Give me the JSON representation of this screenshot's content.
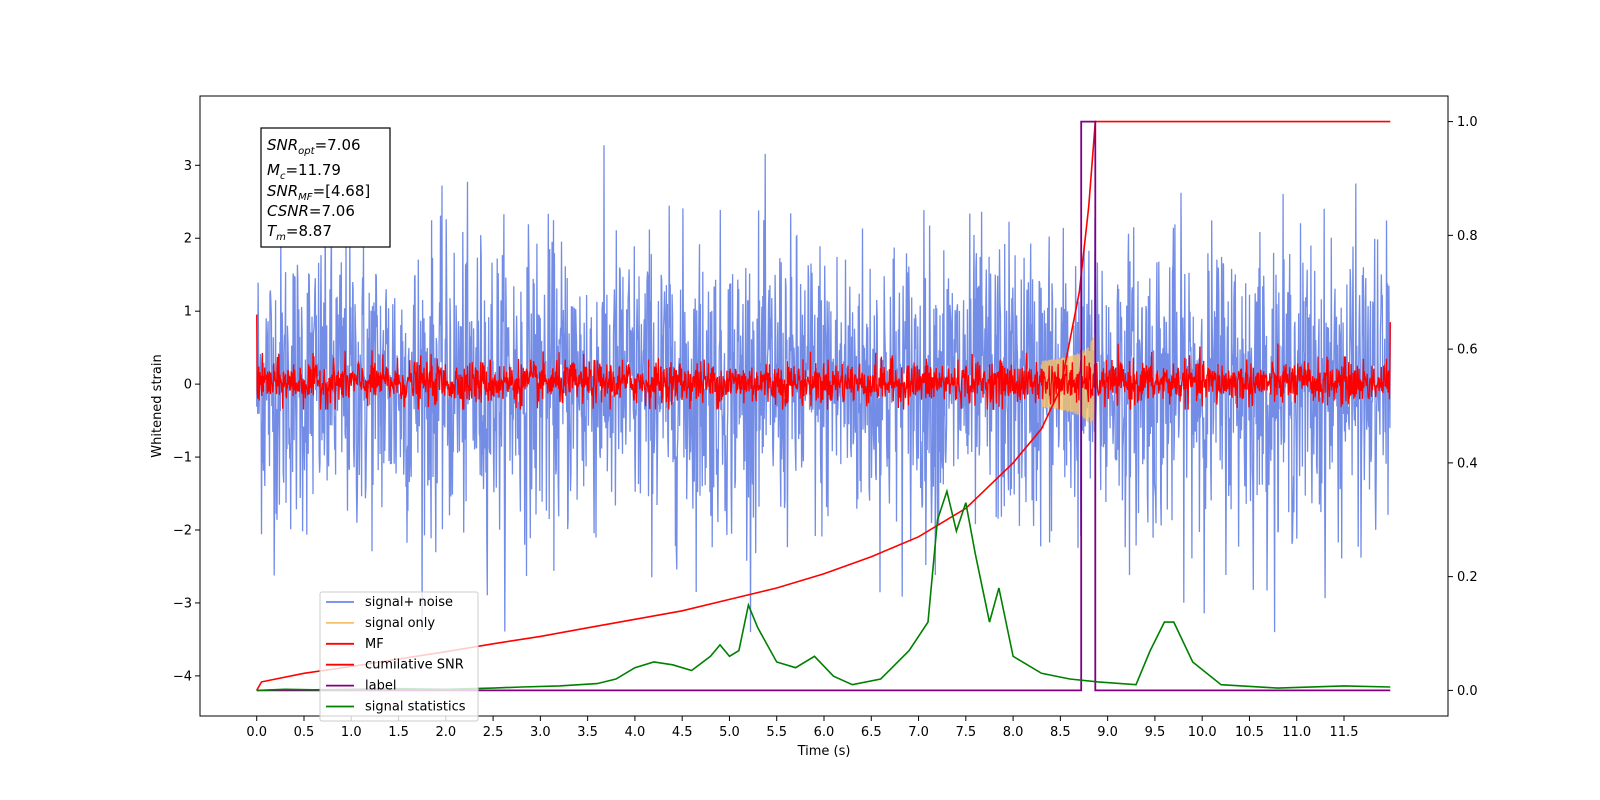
{
  "chart_data": {
    "type": "line",
    "xlabel": "Time (s)",
    "ylabel": "Whitened strain",
    "xlim": [
      -0.6,
      12.6
    ],
    "ylim": [
      -4.55,
      3.95
    ],
    "y2lim": [
      -0.045,
      1.045
    ],
    "x_ticks": [
      "0.0",
      "0.5",
      "1.0",
      "1.5",
      "2.0",
      "2.5",
      "3.0",
      "3.5",
      "4.0",
      "4.5",
      "5.0",
      "5.5",
      "6.0",
      "6.5",
      "7.0",
      "7.5",
      "8.0",
      "8.5",
      "9.0",
      "9.5",
      "10.0",
      "10.5",
      "11.0",
      "11.5"
    ],
    "y_ticks": [
      "3",
      "2",
      "1",
      "0",
      "−1",
      "−2",
      "−3",
      "−4"
    ],
    "y2_ticks": [
      "1.0",
      "0.8",
      "0.6",
      "0.4",
      "0.2",
      "0.0"
    ],
    "info_box": {
      "snr_opt": {
        "var": "SNR",
        "sub": "opt",
        "value": "=7.06"
      },
      "mc": {
        "var": "M",
        "sub": "c",
        "value": "=11.79"
      },
      "snr_mf": {
        "var": "SNR",
        "sub": "MF",
        "value": "=[4.68]"
      },
      "csnr": {
        "var": "CSNR",
        "sub": "",
        "value": "=7.06"
      },
      "tm": {
        "var": "T",
        "sub": "m",
        "value": "=8.87"
      }
    },
    "legend_position": "lower-left",
    "series": [
      {
        "name": "signal+ noise",
        "color": "#6b87e6",
        "axis": "left",
        "kind": "noise",
        "amplitude_range": [
          -2.6,
          2.6
        ]
      },
      {
        "name": "signal only",
        "color": "#f5c26b",
        "axis": "left",
        "kind": "chirp",
        "merger_time": 8.87
      },
      {
        "name": "MF",
        "color": "#ff0000",
        "axis": "left",
        "kind": "noise",
        "amplitude_range": [
          -0.35,
          0.6
        ]
      },
      {
        "name": "cumilative SNR",
        "color": "#ff0000",
        "axis": "right",
        "x": [
          0.0,
          0.05,
          0.5,
          1.0,
          1.5,
          2.0,
          2.5,
          3.0,
          3.5,
          4.0,
          4.5,
          5.0,
          5.5,
          6.0,
          6.5,
          7.0,
          7.5,
          8.0,
          8.3,
          8.5,
          8.7,
          8.8,
          8.87,
          9.5,
          10.0,
          11.0,
          11.99
        ],
        "y": [
          0.0,
          0.015,
          0.03,
          0.042,
          0.055,
          0.068,
          0.082,
          0.095,
          0.11,
          0.125,
          0.14,
          0.16,
          0.18,
          0.205,
          0.235,
          0.27,
          0.32,
          0.4,
          0.46,
          0.53,
          0.7,
          0.85,
          1.0,
          1.0,
          1.0,
          1.0,
          1.0
        ]
      },
      {
        "name": "label",
        "color": "#800080",
        "axis": "right",
        "x": [
          0.0,
          8.72,
          8.72,
          8.87,
          8.87,
          11.99
        ],
        "y": [
          0.0,
          0.0,
          1.0,
          1.0,
          0.0,
          0.0
        ]
      },
      {
        "name": "signal statistics",
        "color": "#008000",
        "axis": "right",
        "x": [
          0.0,
          0.3,
          0.6,
          1.0,
          1.5,
          2.0,
          2.5,
          2.8,
          3.2,
          3.6,
          3.8,
          4.0,
          4.2,
          4.4,
          4.6,
          4.8,
          4.9,
          5.0,
          5.1,
          5.2,
          5.3,
          5.5,
          5.7,
          5.9,
          6.1,
          6.3,
          6.6,
          6.9,
          7.1,
          7.2,
          7.3,
          7.4,
          7.5,
          7.6,
          7.75,
          7.85,
          8.0,
          8.3,
          8.6,
          8.9,
          9.3,
          9.45,
          9.6,
          9.7,
          9.9,
          10.2,
          10.8,
          11.5,
          11.99
        ],
        "y": [
          0.0,
          0.002,
          0.001,
          0.002,
          0.003,
          0.002,
          0.004,
          0.006,
          0.008,
          0.012,
          0.02,
          0.04,
          0.05,
          0.045,
          0.035,
          0.06,
          0.08,
          0.06,
          0.07,
          0.15,
          0.11,
          0.05,
          0.04,
          0.06,
          0.025,
          0.01,
          0.02,
          0.07,
          0.12,
          0.3,
          0.35,
          0.28,
          0.33,
          0.24,
          0.12,
          0.18,
          0.06,
          0.03,
          0.02,
          0.015,
          0.01,
          0.07,
          0.12,
          0.12,
          0.05,
          0.01,
          0.004,
          0.008,
          0.006
        ]
      }
    ]
  }
}
